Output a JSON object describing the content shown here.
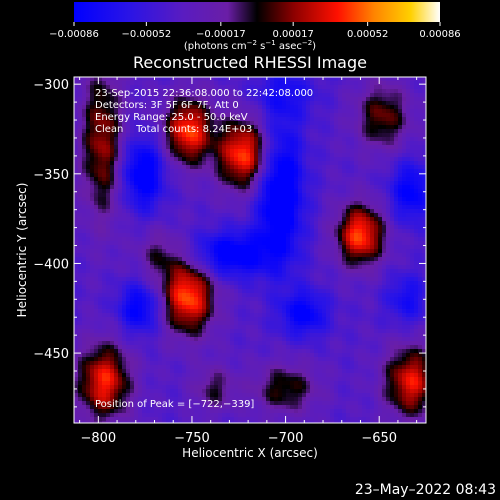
{
  "chart_data": {
    "type": "heatmap",
    "title": "Reconstructed RHESSI Image",
    "xlabel": "Heliocentric X (arcsec)",
    "ylabel": "Heliocentric Y (arcsec)",
    "xlim": [
      -813,
      -625
    ],
    "ylim": [
      -489,
      -296
    ],
    "x_ticks": [
      {
        "value": -800,
        "label": "−800"
      },
      {
        "value": -750,
        "label": "−750"
      },
      {
        "value": -700,
        "label": "−700"
      },
      {
        "value": -650,
        "label": "−650"
      }
    ],
    "y_ticks": [
      {
        "value": -300,
        "label": "−300"
      },
      {
        "value": -350,
        "label": "−350"
      },
      {
        "value": -400,
        "label": "−400"
      },
      {
        "value": -450,
        "label": "−450"
      }
    ],
    "colorbar": {
      "range": [
        -0.00086,
        0.00086
      ],
      "tick_values": [
        -0.00086,
        -0.00052,
        -0.00017,
        0.00017,
        0.00052,
        0.00086
      ],
      "tick_labels": [
        "−0.00086",
        "−0.00052",
        "−0.00017",
        "0.00017",
        "0.00052",
        "0.00086"
      ],
      "unit_text": "(photons cm",
      "unit_exp1": "−2",
      "unit_mid1": " s",
      "unit_exp2": "−1",
      "unit_mid2": " asec",
      "unit_exp3": "−2",
      "unit_end": ")"
    },
    "annotations": [
      "23-Sep-2015 22:36:08.000 to 22:42:08.000",
      "Detectors: 3F 5F 6F 7F, Att 0",
      "Energy Range: 25.0 - 50.0 keV",
      "Clean    Total counts: 8.24E+03"
    ],
    "peak_label": "Position of Peak = [−722,−339]",
    "peak": {
      "x": -722,
      "y": -339
    },
    "sources": [
      {
        "x": -722,
        "y": -339,
        "amp": 0.00086,
        "sx": 10,
        "sy": 14
      },
      {
        "x": -752,
        "y": -326,
        "amp": 0.00082,
        "sx": 9,
        "sy": 13
      },
      {
        "x": -660,
        "y": -384,
        "amp": 0.00084,
        "sx": 9,
        "sy": 12
      },
      {
        "x": -752,
        "y": -418,
        "amp": 0.00086,
        "sx": 10,
        "sy": 15
      },
      {
        "x": -797,
        "y": -466,
        "amp": 0.00076,
        "sx": 10,
        "sy": 15
      },
      {
        "x": -633,
        "y": -466,
        "amp": 0.00072,
        "sx": 10,
        "sy": 14
      },
      {
        "x": -798,
        "y": -332,
        "amp": 0.00058,
        "sx": 8,
        "sy": 30
      },
      {
        "x": -648,
        "y": -318,
        "amp": 0.0005,
        "sx": 10,
        "sy": 13
      },
      {
        "x": -700,
        "y": -470,
        "amp": 0.00044,
        "sx": 12,
        "sy": 10
      },
      {
        "x": -738,
        "y": -470,
        "amp": 0.00034,
        "sx": 8,
        "sy": 9
      },
      {
        "x": -768,
        "y": -395,
        "amp": 0.0003,
        "sx": 8,
        "sy": 10
      },
      {
        "x": -703,
        "y": -360,
        "amp": -0.0007,
        "sx": 9,
        "sy": 28
      },
      {
        "x": -776,
        "y": -350,
        "amp": -0.00062,
        "sx": 8,
        "sy": 14
      },
      {
        "x": -730,
        "y": -395,
        "amp": -0.0006,
        "sx": 15,
        "sy": 9
      },
      {
        "x": -778,
        "y": -425,
        "amp": -0.00052,
        "sx": 8,
        "sy": 10
      },
      {
        "x": -690,
        "y": -428,
        "amp": -0.0005,
        "sx": 9,
        "sy": 9
      },
      {
        "x": -633,
        "y": -360,
        "amp": -0.0005,
        "sx": 8,
        "sy": 12
      },
      {
        "x": -635,
        "y": -420,
        "amp": -0.00036,
        "sx": 8,
        "sy": 10
      },
      {
        "x": -700,
        "y": -305,
        "amp": -0.00028,
        "sx": 12,
        "sy": 10
      }
    ]
  },
  "footer": {
    "timestamp": "23–May–2022 08:43"
  }
}
